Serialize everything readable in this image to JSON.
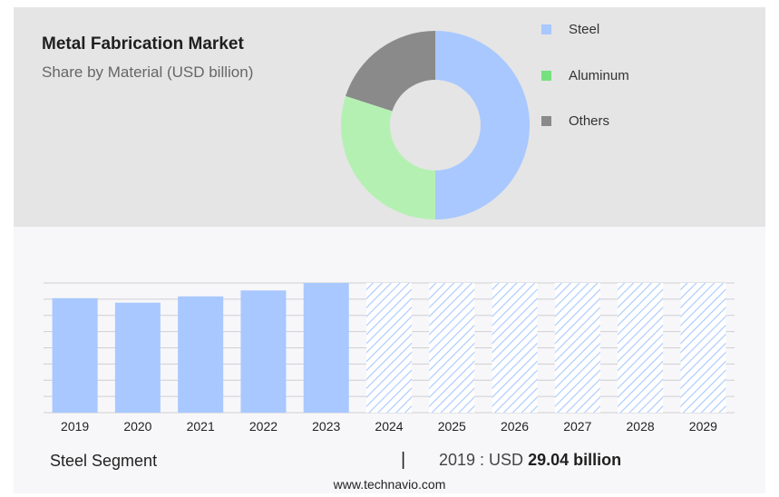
{
  "header": {
    "title": "Metal Fabrication Market",
    "subtitle": "Share by Material (USD billion)"
  },
  "legend": [
    {
      "label": "Steel",
      "color": "#a8c8ff"
    },
    {
      "label": "Aluminum",
      "color": "#77e07f"
    },
    {
      "label": "Others",
      "color": "#8a8a8a"
    }
  ],
  "footer": {
    "segment": "Steel Segment",
    "separator": "|",
    "value_prefix": "2019 : USD",
    "value_bold": "29.04 billion"
  },
  "source": "www.technavio.com",
  "chart_data": [
    {
      "type": "pie",
      "subtype": "donut",
      "categories": [
        "Steel",
        "Aluminum",
        "Others"
      ],
      "values": [
        50,
        30,
        20
      ],
      "colors": [
        "#a8c8ff",
        "#b5f0b3",
        "#8a8a8a"
      ]
    },
    {
      "type": "bar",
      "categories": [
        "2019",
        "2020",
        "2021",
        "2022",
        "2023",
        "2024",
        "2025",
        "2026",
        "2027",
        "2028",
        "2029"
      ],
      "values": [
        29.04,
        27.9,
        29.5,
        31.0,
        32.9,
        32.9,
        32.9,
        32.9,
        32.9,
        32.9,
        32.9
      ],
      "forecast_from": "2024",
      "ylim": [
        0,
        36
      ],
      "grid": true,
      "bar_color": "#a8c8ff",
      "forecast_pattern": "hatched"
    }
  ]
}
